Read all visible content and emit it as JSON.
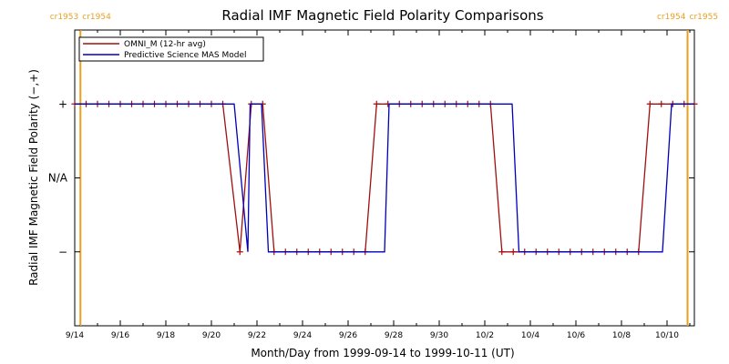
{
  "chart_data": {
    "type": "line",
    "title": "Radial IMF Magnetic Field Polarity Comparisons",
    "xlabel": "Month/Day from 1999-09-14 to 1999-10-11 (UT)",
    "ylabel": "Radial IMF Magnetic Field Polarity (−,+)",
    "x_tick_labels": [
      "9/14",
      "9/16",
      "9/18",
      "9/20",
      "9/22",
      "9/24",
      "9/26",
      "9/28",
      "9/30",
      "10/2",
      "10/4",
      "10/6",
      "10/8",
      "10/10"
    ],
    "x_tick_days": [
      0,
      2,
      4,
      6,
      8,
      10,
      12,
      14,
      16,
      18,
      20,
      22,
      24,
      26
    ],
    "xlim_days": [
      0,
      27.2
    ],
    "y_tick_labels": [
      "+",
      "N/A",
      "−"
    ],
    "y_tick_values": [
      1,
      0,
      -1
    ],
    "ylim": [
      -2,
      2
    ],
    "legend": {
      "placement": "top-left",
      "entries": [
        "OMNI_M (12-hr avg)",
        "Predictive Science MAS Model"
      ]
    },
    "carrington_markers": [
      {
        "label_left": "cr1953",
        "label_right": "cr1954",
        "day": 0.25
      },
      {
        "label_left": "cr1954",
        "label_right": "cr1955",
        "day": 26.9
      }
    ],
    "series": [
      {
        "name": "OMNI_M (12-hr avg)",
        "color": "#a01010",
        "markers": true,
        "points": [
          [
            0,
            1
          ],
          [
            0.5,
            1
          ],
          [
            1,
            1
          ],
          [
            1.5,
            1
          ],
          [
            2,
            1
          ],
          [
            2.5,
            1
          ],
          [
            3,
            1
          ],
          [
            3.5,
            1
          ],
          [
            4,
            1
          ],
          [
            4.5,
            1
          ],
          [
            5,
            1
          ],
          [
            5.5,
            1
          ],
          [
            6,
            1
          ],
          [
            6.5,
            1
          ],
          [
            7.25,
            -1
          ],
          [
            7.75,
            1
          ],
          [
            8.25,
            1
          ],
          [
            8.75,
            -1
          ],
          [
            9.25,
            -1
          ],
          [
            9.75,
            -1
          ],
          [
            10.25,
            -1
          ],
          [
            10.75,
            -1
          ],
          [
            11.25,
            -1
          ],
          [
            11.75,
            -1
          ],
          [
            12.25,
            -1
          ],
          [
            12.75,
            -1
          ],
          [
            13.25,
            1
          ],
          [
            13.75,
            1
          ],
          [
            14.25,
            1
          ],
          [
            14.75,
            1
          ],
          [
            15.25,
            1
          ],
          [
            15.75,
            1
          ],
          [
            16.25,
            1
          ],
          [
            16.75,
            1
          ],
          [
            17.25,
            1
          ],
          [
            17.75,
            1
          ],
          [
            18.25,
            1
          ],
          [
            18.75,
            -1
          ],
          [
            19.25,
            -1
          ],
          [
            19.75,
            -1
          ],
          [
            20.25,
            -1
          ],
          [
            20.75,
            -1
          ],
          [
            21.25,
            -1
          ],
          [
            21.75,
            -1
          ],
          [
            22.25,
            -1
          ],
          [
            22.75,
            -1
          ],
          [
            23.25,
            -1
          ],
          [
            23.75,
            -1
          ],
          [
            24.25,
            -1
          ],
          [
            24.75,
            -1
          ],
          [
            25.25,
            1
          ],
          [
            25.75,
            1
          ],
          [
            26.25,
            1
          ],
          [
            26.75,
            1
          ],
          [
            27.2,
            1
          ]
        ]
      },
      {
        "name": "Predictive Science MAS Model",
        "color": "#0000bb",
        "markers": false,
        "points": [
          [
            0,
            1
          ],
          [
            6.5,
            1
          ],
          [
            7.0,
            1
          ],
          [
            7.6,
            -1
          ],
          [
            7.7,
            1
          ],
          [
            8.2,
            1
          ],
          [
            8.5,
            -1
          ],
          [
            13.6,
            -1
          ],
          [
            13.8,
            1
          ],
          [
            18.5,
            1
          ],
          [
            19.2,
            1
          ],
          [
            19.5,
            -1
          ],
          [
            25.8,
            -1
          ],
          [
            26.2,
            1
          ],
          [
            27.2,
            1
          ]
        ]
      }
    ]
  }
}
